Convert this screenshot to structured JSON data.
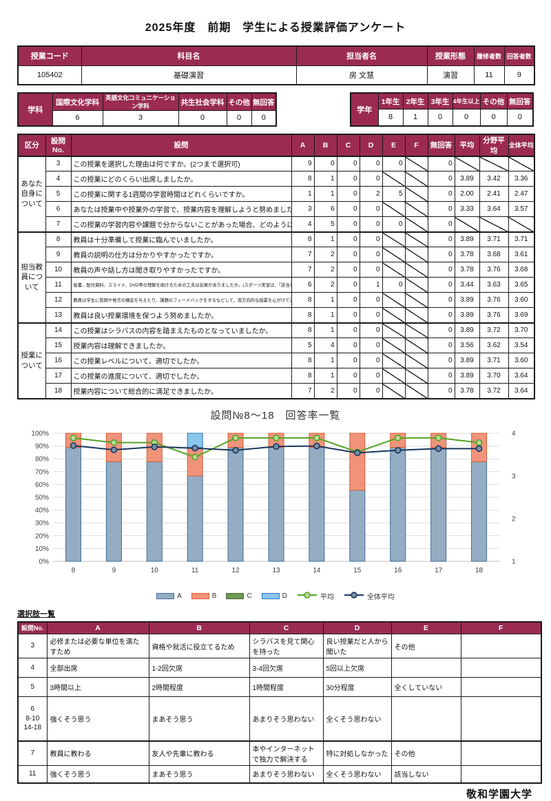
{
  "title": "2025年度　前期　学生による授業評価アンケート",
  "colors": {
    "header_bg": "#9B2B52",
    "grid": "#DDDDDD",
    "axis_text": "#404040"
  },
  "course_table": {
    "headers": [
      "授業コード",
      "科目名",
      "担当者名",
      "授業形態",
      "履修者数",
      "回答者数"
    ],
    "values": [
      "105402",
      "基礎演習",
      "房 文慧",
      "演習",
      "11",
      "9"
    ]
  },
  "department_table": {
    "label": "学科",
    "headers": [
      "国際文化学科",
      "英語文化コミュニケーション学科",
      "共生社会学科",
      "その他",
      "無回答"
    ],
    "values": [
      "6",
      "3",
      "0",
      "0",
      "0"
    ]
  },
  "grade_table": {
    "label": "学年",
    "headers": [
      "1年生",
      "2年生",
      "3年生",
      "4年生以上",
      "その他",
      "無回答"
    ],
    "values": [
      "8",
      "1",
      "0",
      "0",
      "0",
      "0"
    ]
  },
  "main_table": {
    "headers": [
      "区分",
      "設問No.",
      "設問",
      "A",
      "B",
      "C",
      "D",
      "E",
      "F",
      "無回答",
      "平均",
      "分野平均",
      "全体平均"
    ],
    "sections": [
      {
        "label": "あなた自身について",
        "rows": [
          {
            "no": "3",
            "q": "この授業を選択した理由は何ですか。(2つまで選択可)",
            "small": false,
            "vals": [
              "9",
              "0",
              "0",
              "0",
              "0",
              "DIAG",
              "0",
              "DIAG",
              "DIAG",
              "DIAG"
            ]
          },
          {
            "no": "4",
            "q": "この授業にどのくらい出席しましたか。",
            "small": false,
            "vals": [
              "8",
              "1",
              "0",
              "0",
              "DIAG",
              "DIAG",
              "0",
              "3.89",
              "3.42",
              "3.36"
            ]
          },
          {
            "no": "5",
            "q": "この授業に関する1週間の学習時間はどれくらいですか。",
            "small": false,
            "vals": [
              "1",
              "1",
              "0",
              "2",
              "5",
              "DIAG",
              "0",
              "2.00",
              "2.41",
              "2.47"
            ]
          },
          {
            "no": "6",
            "q": "あなたは授業中や授業外の学習で、授業内容を理解しようと努めましたか。",
            "small": false,
            "vals": [
              "3",
              "6",
              "0",
              "0",
              "DIAG",
              "DIAG",
              "0",
              "3.33",
              "3.64",
              "3.57"
            ]
          },
          {
            "no": "7",
            "q": "この授業の学習内容や課題で分からないことがあった場合、どのように対処しましたか。",
            "small": false,
            "vals": [
              "4",
              "5",
              "0",
              "0",
              "0",
              "DIAG",
              "0",
              "DIAG",
              "DIAG",
              "DIAG"
            ]
          }
        ]
      },
      {
        "label": "担当教員について",
        "rows": [
          {
            "no": "8",
            "q": "教員は十分準備して授業に臨んでいましたか。",
            "small": false,
            "vals": [
              "8",
              "1",
              "0",
              "0",
              "DIAG",
              "DIAG",
              "0",
              "3.89",
              "3.71",
              "3.71"
            ]
          },
          {
            "no": "9",
            "q": "教員の説明の仕方は分かりやすかったですか。",
            "small": false,
            "vals": [
              "7",
              "2",
              "0",
              "0",
              "DIAG",
              "DIAG",
              "0",
              "3.78",
              "3.68",
              "3.61"
            ]
          },
          {
            "no": "10",
            "q": "教員の声や話し方は聞き取りやすかったですか。",
            "small": false,
            "vals": [
              "7",
              "2",
              "0",
              "0",
              "DIAG",
              "DIAG",
              "0",
              "3.78",
              "3.76",
              "3.68"
            ]
          },
          {
            "no": "11",
            "q": "板書、配付資料、スライド、DVD等の理解を助けるための工夫は効果がありましたか。(スポーツ実習は、「該当しない」を選んでください)",
            "small": true,
            "vals": [
              "6",
              "2",
              "0",
              "1",
              "0",
              "DIAG",
              "0",
              "3.44",
              "3.63",
              "3.65"
            ]
          },
          {
            "no": "12",
            "q": "教員は学生に質問や発言の機会を与えたり、課題のフィードバックをするなどして、双方向的な授業を心がけていましたか。",
            "small": true,
            "vals": [
              "8",
              "1",
              "0",
              "0",
              "DIAG",
              "DIAG",
              "0",
              "3.89",
              "3.76",
              "3.60"
            ]
          },
          {
            "no": "13",
            "q": "教員は良い授業環境を保つよう努めましたか。",
            "small": false,
            "vals": [
              "8",
              "1",
              "0",
              "0",
              "DIAG",
              "DIAG",
              "0",
              "3.89",
              "3.76",
              "3.69"
            ]
          }
        ]
      },
      {
        "label": "授業について",
        "rows": [
          {
            "no": "14",
            "q": "この授業はシラバスの内容を踏まえたものとなっていましたか。",
            "small": false,
            "vals": [
              "8",
              "1",
              "0",
              "0",
              "DIAG",
              "DIAG",
              "0",
              "3.89",
              "3.72",
              "3.70"
            ]
          },
          {
            "no": "15",
            "q": "授業内容は理解できましたか。",
            "small": false,
            "vals": [
              "5",
              "4",
              "0",
              "0",
              "DIAG",
              "DIAG",
              "0",
              "3.56",
              "3.62",
              "3.54"
            ]
          },
          {
            "no": "16",
            "q": "この授業レベルについて、適切でしたか。",
            "small": false,
            "vals": [
              "8",
              "1",
              "0",
              "0",
              "DIAG",
              "DIAG",
              "0",
              "3.89",
              "3.71",
              "3.60"
            ]
          },
          {
            "no": "17",
            "q": "この授業の進度について、適切でしたか。",
            "small": false,
            "vals": [
              "8",
              "1",
              "0",
              "0",
              "DIAG",
              "DIAG",
              "0",
              "3.89",
              "3.70",
              "3.64"
            ]
          },
          {
            "no": "18",
            "q": "授業内容について総合的に満足できましたか。",
            "small": false,
            "vals": [
              "7",
              "2",
              "0",
              "0",
              "DIAG",
              "DIAG",
              "0",
              "3.78",
              "3.72",
              "3.64"
            ]
          }
        ]
      }
    ]
  },
  "chart_data": {
    "type": "bar",
    "subtype": "stacked-percent-with-lines",
    "title": "設問№8～18　回答率一覧",
    "categories": [
      "8",
      "9",
      "10",
      "11",
      "12",
      "13",
      "14",
      "15",
      "16",
      "17",
      "18"
    ],
    "total_responses": 9,
    "series": [
      {
        "name": "A",
        "values": [
          8,
          7,
          7,
          6,
          8,
          8,
          8,
          5,
          8,
          8,
          7
        ],
        "color": "#94ADC3",
        "border": "#3F6D9C"
      },
      {
        "name": "B",
        "values": [
          1,
          2,
          2,
          2,
          1,
          1,
          1,
          4,
          1,
          1,
          2
        ],
        "color": "#F0937A",
        "border": "#D95F36"
      },
      {
        "name": "C",
        "values": [
          0,
          0,
          0,
          0,
          0,
          0,
          0,
          0,
          0,
          0,
          0
        ],
        "color": "#6D9A53",
        "border": "#44672F"
      },
      {
        "name": "D",
        "values": [
          0,
          0,
          0,
          1,
          0,
          0,
          0,
          0,
          0,
          0,
          0
        ],
        "color": "#8AC5EB",
        "border": "#2E75B6"
      }
    ],
    "lines": [
      {
        "name": "平均",
        "values": [
          3.89,
          3.78,
          3.78,
          3.44,
          3.89,
          3.89,
          3.89,
          3.56,
          3.89,
          3.89,
          3.78
        ],
        "color": "#53A324",
        "marker_fill": "#B9DA9A"
      },
      {
        "name": "全体平均",
        "values": [
          3.71,
          3.61,
          3.68,
          3.65,
          3.6,
          3.69,
          3.7,
          3.54,
          3.6,
          3.64,
          3.64
        ],
        "color": "#17375E",
        "marker_fill": "#7A8FA6"
      }
    ],
    "left_axis": {
      "min": 0,
      "max": 100,
      "step": 10,
      "labels": [
        "0%",
        "10%",
        "20%",
        "30%",
        "40%",
        "50%",
        "60%",
        "70%",
        "80%",
        "90%",
        "100%"
      ]
    },
    "right_axis": {
      "min": 1,
      "max": 4,
      "step": 1,
      "labels": [
        "1",
        "2",
        "3",
        "4"
      ]
    },
    "grid": true,
    "legend_position": "bottom"
  },
  "choices_table": {
    "title": "選択肢一覧",
    "headers": [
      "設問No.",
      "A",
      "B",
      "C",
      "D",
      "E",
      "F"
    ],
    "rows": [
      {
        "no": "3",
        "thick_top": false,
        "cells": [
          "必修または必要な単位を満たすため",
          "資格や就活に役立てるため",
          "シラバスを見て関心を持った",
          "良い授業だと人から聞いた",
          "その他",
          ""
        ]
      },
      {
        "no": "4",
        "thick_top": false,
        "cells": [
          "全部出席",
          "1-2回欠席",
          "3-4回欠席",
          "5回以上欠席",
          "",
          ""
        ]
      },
      {
        "no": "5",
        "thick_top": false,
        "cells": [
          "3時間以上",
          "2時間程度",
          "1時間程度",
          "30分程度",
          "全くしていない",
          ""
        ]
      },
      {
        "no": "6\n8-10\n14-18",
        "thick_top": false,
        "cells": [
          "強くそう思う",
          "まあそう思う",
          "あまりそう思わない",
          "全くそう思わない",
          "",
          ""
        ]
      },
      {
        "no": "7",
        "thick_top": true,
        "cells": [
          "教員に教わる",
          "友人や先輩に教わる",
          "本やインターネットで独力で解決する",
          "特に対処しなかった",
          "その他",
          ""
        ]
      },
      {
        "no": "11",
        "thick_top": false,
        "cells": [
          "強くそう思う",
          "まあそう思う",
          "あまりそう思わない",
          "全くそう思わない",
          "該当しない",
          ""
        ]
      }
    ]
  },
  "footer": "敬和学園大学"
}
